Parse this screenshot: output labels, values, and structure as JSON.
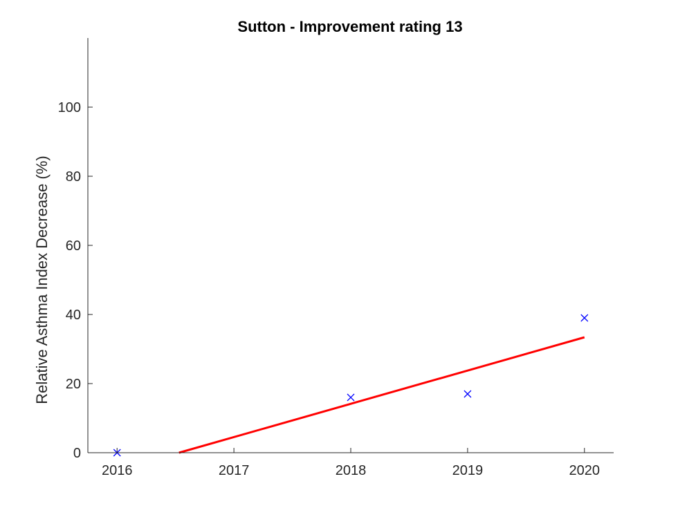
{
  "chart_data": {
    "type": "scatter",
    "title": "Sutton - Improvement rating 13",
    "xlabel": "",
    "ylabel": "Relative Asthma Index Decrease (%)",
    "xlim": [
      2015.75,
      2020.25
    ],
    "ylim": [
      0,
      120
    ],
    "xticks": [
      2016,
      2017,
      2018,
      2019,
      2020
    ],
    "yticks": [
      0,
      20,
      40,
      60,
      80,
      100
    ],
    "grid": false,
    "box": "off",
    "series": [
      {
        "kind": "scatter",
        "marker": "x",
        "color": "#0000ff",
        "points": [
          {
            "x": 2016,
            "y": 0
          },
          {
            "x": 2018,
            "y": 16
          },
          {
            "x": 2019,
            "y": 17
          },
          {
            "x": 2020,
            "y": 39
          }
        ]
      },
      {
        "kind": "line",
        "color": "#ff0000",
        "points": [
          {
            "x": 2016.53,
            "y": 0
          },
          {
            "x": 2020,
            "y": 33.4
          }
        ]
      }
    ]
  }
}
